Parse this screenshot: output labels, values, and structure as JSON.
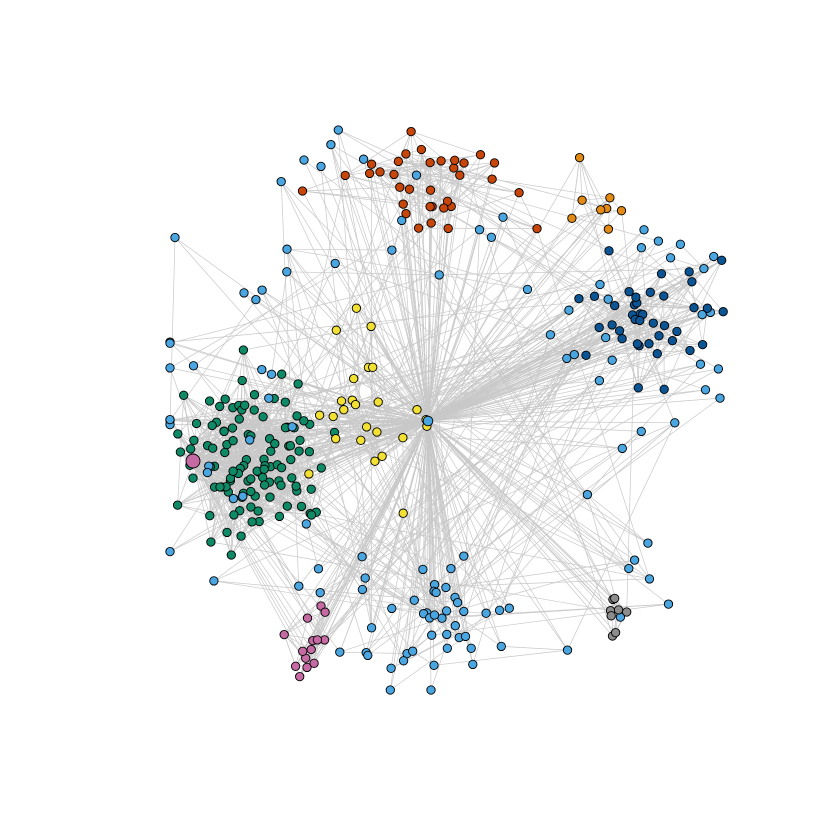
{
  "title": "",
  "colors": {
    "background": "#ffffff",
    "edge": "#c8c8c8",
    "node_outline": "#000000"
  },
  "clusters": [
    {
      "id": "green",
      "color": "#0f8a66",
      "count": 110
    },
    {
      "id": "light-blue",
      "color": "#4aa6e0",
      "count": 120
    },
    {
      "id": "dark-blue",
      "color": "#0b5595",
      "count": 40
    },
    {
      "id": "orange-red",
      "color": "#c8460a",
      "count": 34
    },
    {
      "id": "orange",
      "color": "#e28a14",
      "count": 8
    },
    {
      "id": "yellow",
      "color": "#f2e132",
      "count": 25
    },
    {
      "id": "pink",
      "color": "#c56aa3",
      "count": 14
    },
    {
      "id": "gray",
      "color": "#8c8c8c",
      "count": 8
    }
  ],
  "hubs": [
    {
      "cluster": "pink",
      "size": "large"
    },
    {
      "cluster": "light-blue",
      "size": "normal"
    }
  ]
}
